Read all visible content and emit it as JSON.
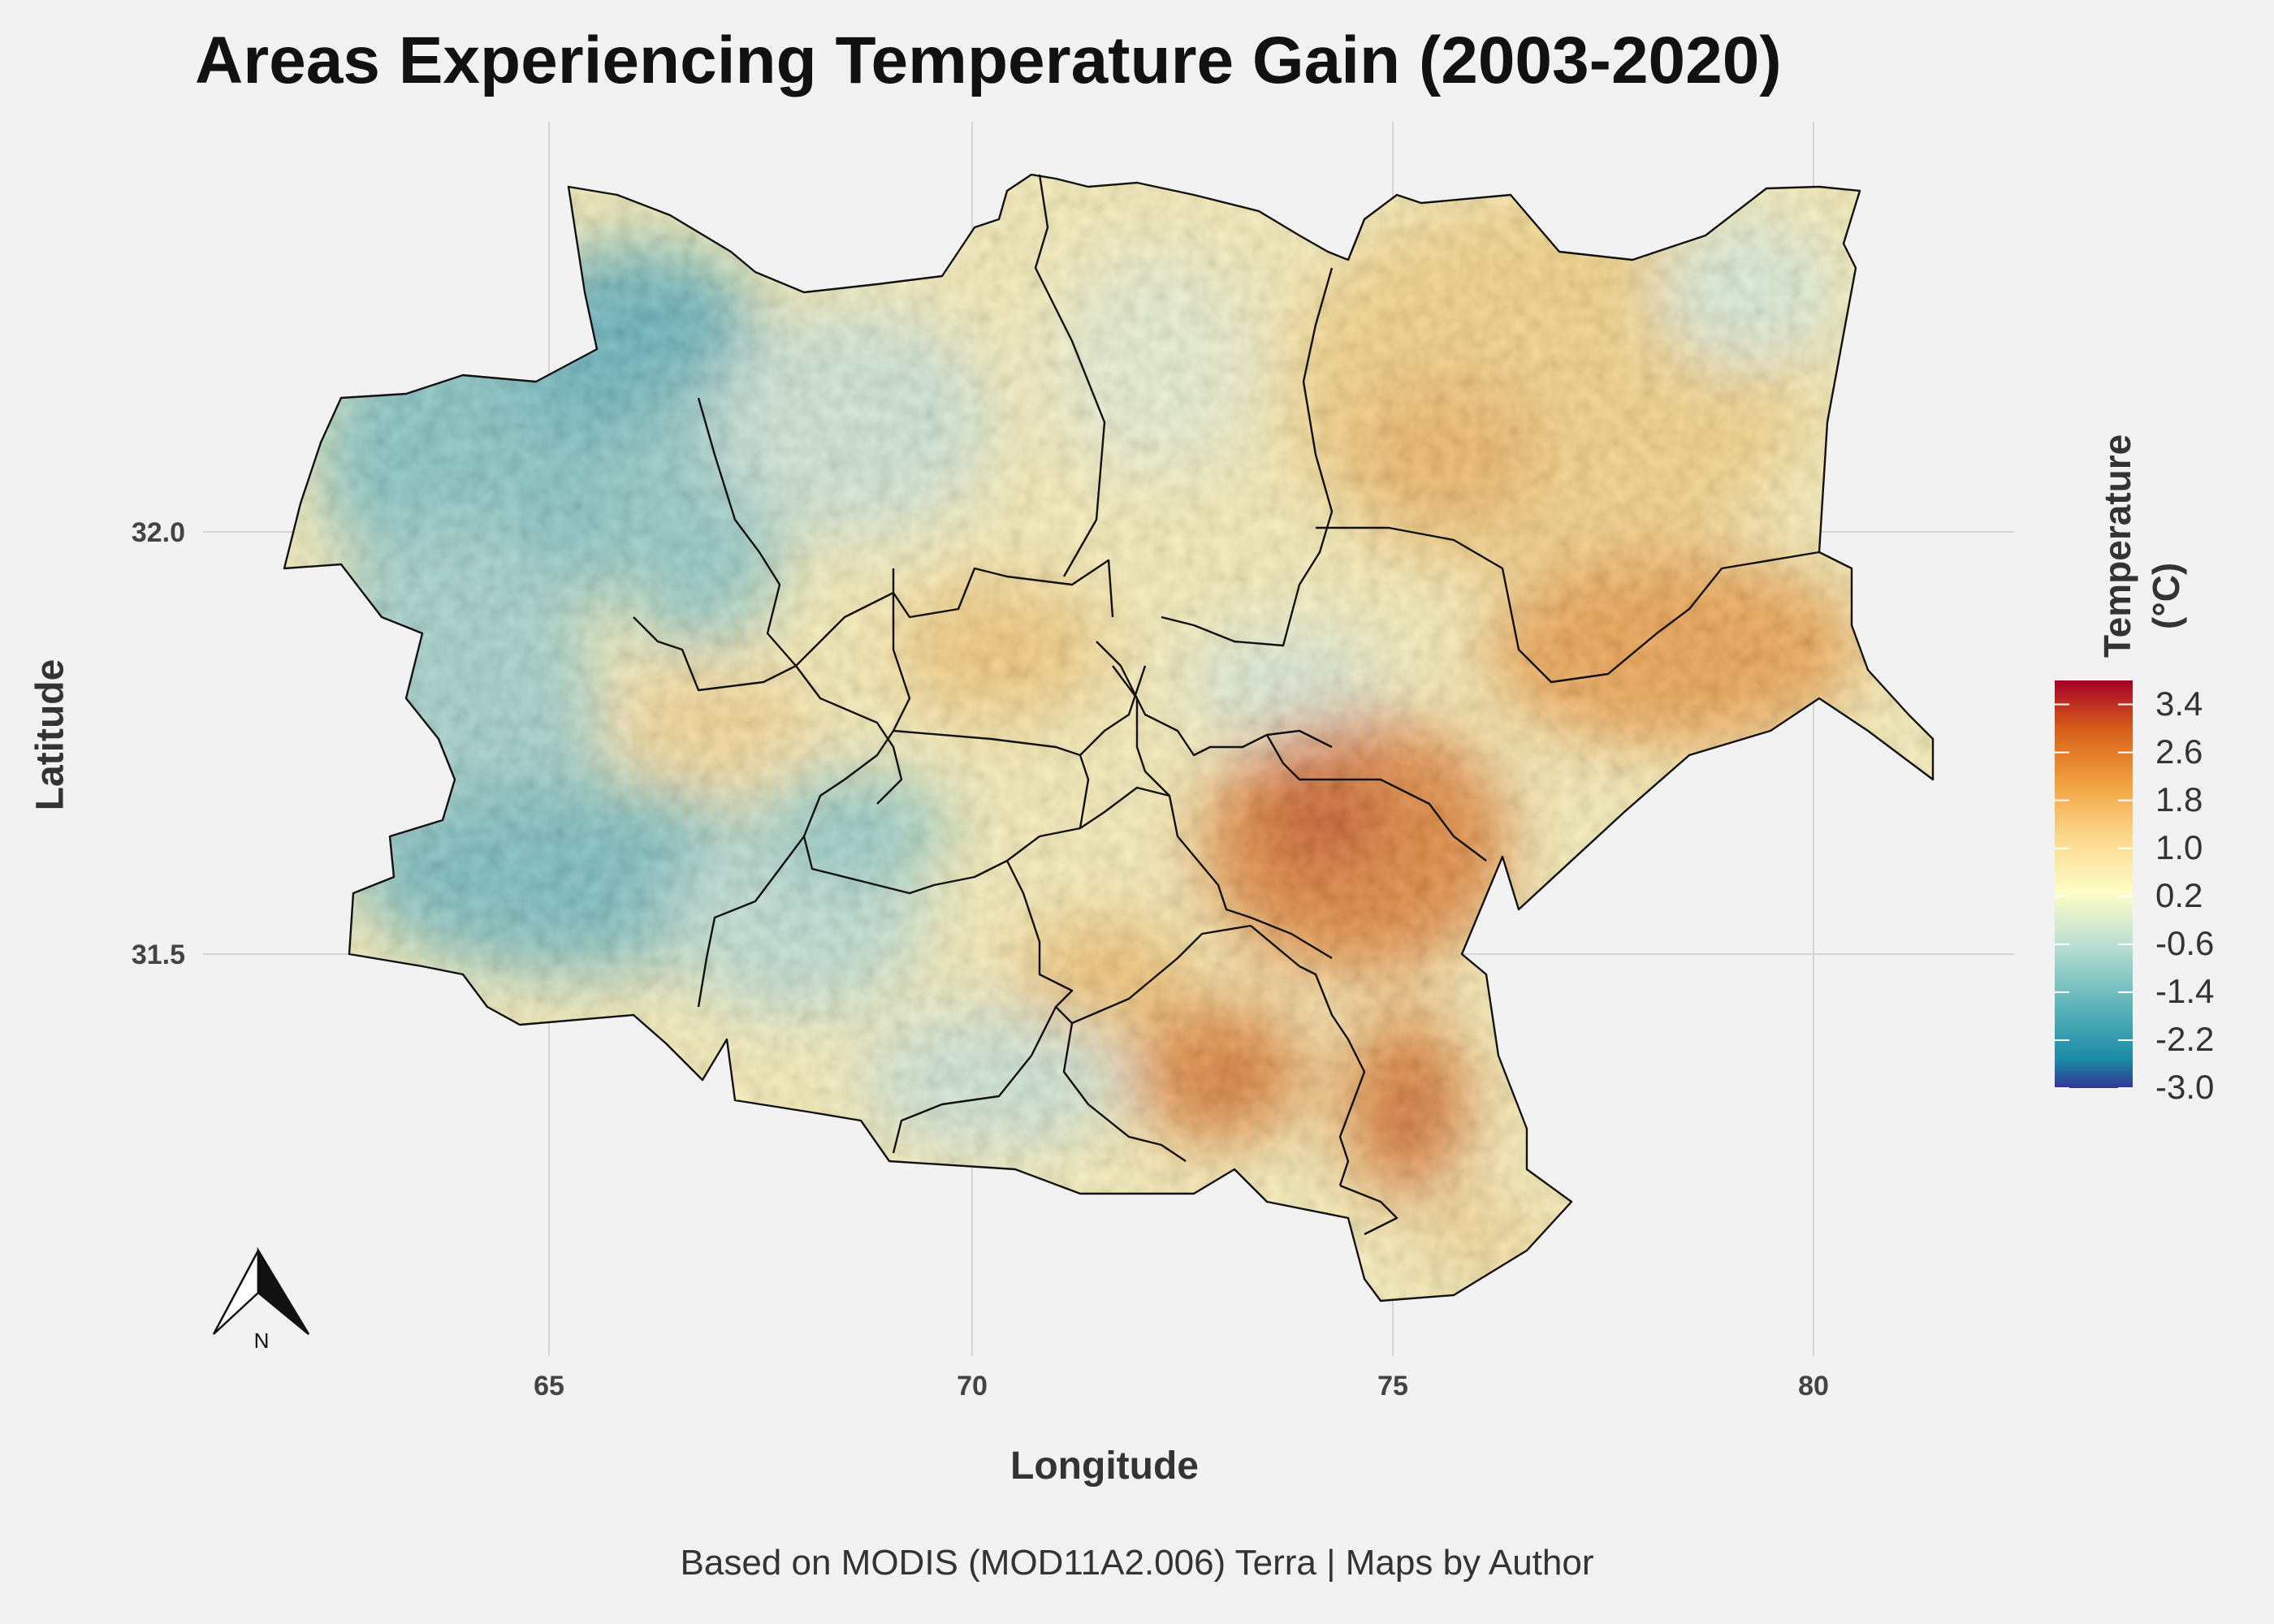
{
  "title": "Areas Experiencing Temperature Gain (2003-2020)",
  "caption": "Based on MODIS (MOD11A2.006) Terra | Maps by Author",
  "north_arrow": {
    "label": "N"
  },
  "colors": {
    "background": "#f2f2f2",
    "gridline": "#d4d4d4",
    "border": "#111111",
    "scale": [
      "#313695",
      "#1a8aa5",
      "#5bb3b9",
      "#b9dfd3",
      "#fffdc6",
      "#fbd78a",
      "#f1a03f",
      "#d75f1a",
      "#a50026"
    ]
  },
  "chart_data": {
    "type": "heatmap",
    "title": "Areas Experiencing Temperature Gain (2003-2020)",
    "xlabel": "Longitude",
    "ylabel": "Latitude",
    "x_ticks": [
      "65",
      "70",
      "75",
      "80"
    ],
    "y_ticks": [
      "32.0",
      "31.5"
    ],
    "legend": {
      "title_lines": [
        "Temperature",
        "(°C)"
      ],
      "values": [
        "3.4",
        "2.6",
        "1.8",
        "1.0",
        "0.2",
        "-0.6",
        "-1.4",
        "-2.2",
        "-3.0"
      ],
      "range": [
        -3.0,
        3.8
      ],
      "position": "right"
    },
    "grid": true,
    "regions": {
      "west": "mostly cool (-3.0 to 0.2 °C)",
      "north_central_east": "mild warming (0.2 to 1.8 °C)",
      "south_east": "strong warming (1.8 to 3.8 °C)"
    }
  }
}
